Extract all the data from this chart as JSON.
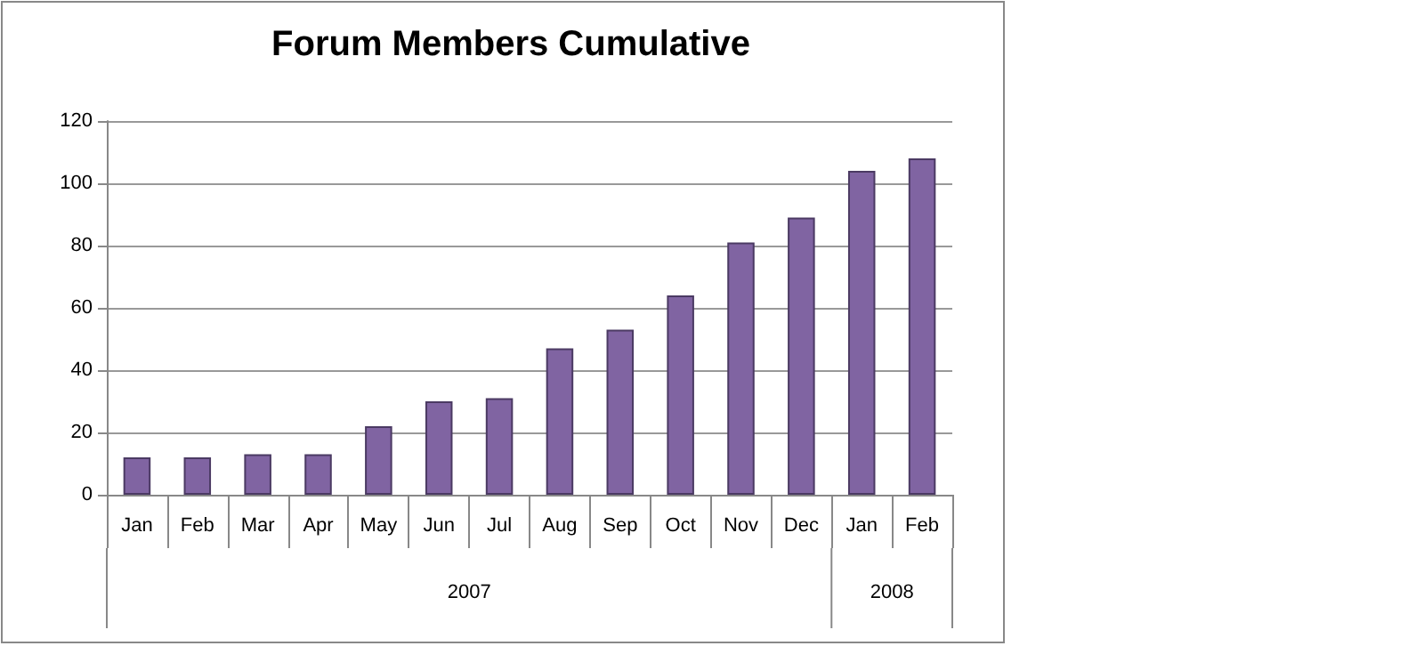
{
  "chart_data": {
    "type": "bar",
    "title": "Forum Members Cumulative",
    "categories": [
      "Jan",
      "Feb",
      "Mar",
      "Apr",
      "May",
      "Jun",
      "Jul",
      "Aug",
      "Sep",
      "Oct",
      "Nov",
      "Dec",
      "Jan",
      "Feb"
    ],
    "values": [
      12,
      12,
      13,
      13,
      22,
      30,
      31,
      47,
      53,
      64,
      81,
      89,
      104,
      108
    ],
    "color": "#8064a2",
    "ylim": [
      0,
      120
    ],
    "yticks": [
      0,
      20,
      40,
      60,
      80,
      100,
      120
    ],
    "grid": "y",
    "annotations": [
      "2007",
      "2008"
    ]
  }
}
